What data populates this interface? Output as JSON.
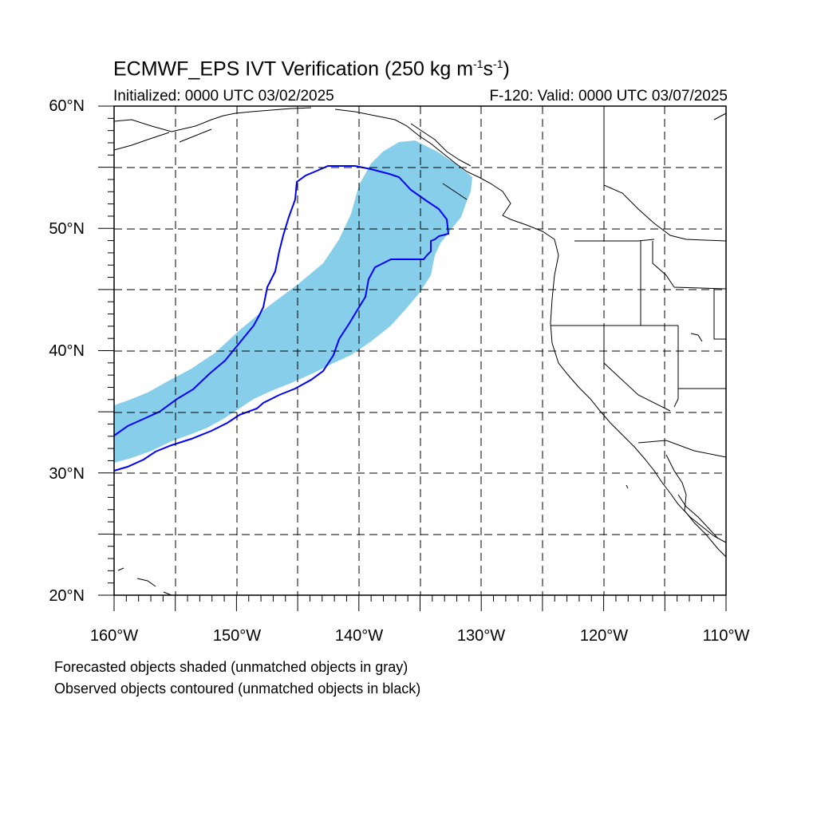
{
  "title": {
    "main": "ECMWF_EPS IVT Verification (250 kg m",
    "exp1": "-1",
    "mid": "s",
    "exp2": "-1",
    "close": ")"
  },
  "initialized": "Initialized: 0000 UTC 03/02/2025",
  "valid": "F-120: Valid: 0000 UTC 03/07/2025",
  "lat_labels": [
    "60°N",
    "50°N",
    "40°N",
    "30°N",
    "20°N"
  ],
  "lon_labels": [
    "160°W",
    "150°W",
    "140°W",
    "130°W",
    "120°W",
    "110°W"
  ],
  "notes": [
    "Forecasted objects shaded (unmatched objects in gray)",
    "Observed objects contoured (unmatched objects in black)"
  ],
  "colors": {
    "forecast_fill": "#87ceeb",
    "observed_contour": "#0000ff",
    "coastline": "#000000",
    "grid": "#000000"
  },
  "map_extent": {
    "lon": [
      -160,
      -110
    ],
    "lat": [
      20,
      60
    ]
  }
}
